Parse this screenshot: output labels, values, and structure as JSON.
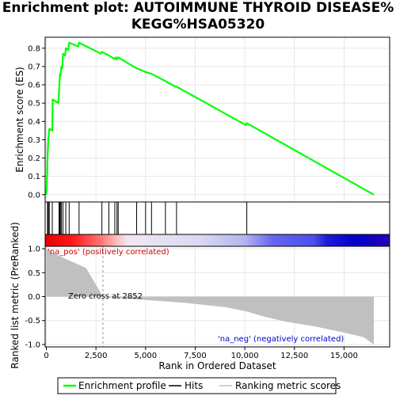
{
  "title_line1": "Enrichment plot: AUTOIMMUNE THYROID DISEASE%",
  "title_line2": "KEGG%HSA05320",
  "chart_data": {
    "type": "line",
    "title": "Enrichment plot: AUTOIMMUNE THYROID DISEASE% KEGG%HSA05320",
    "xlabel": "Rank in Ordered Dataset",
    "top_panel": {
      "ylabel": "Enrichment score (ES)",
      "ylim": [
        -0.04,
        0.86
      ],
      "yticks": [
        "0.0",
        "0.1",
        "0.2",
        "0.3",
        "0.4",
        "0.5",
        "0.6",
        "0.7",
        "0.8"
      ],
      "series": [
        {
          "name": "Enrichment profile",
          "color": "#00ff00",
          "x": [
            0,
            40,
            60,
            100,
            150,
            300,
            320,
            600,
            640,
            660,
            690,
            710,
            760,
            800,
            840,
            950,
            980,
            1100,
            1150,
            1600,
            1650,
            2750,
            2800,
            3150,
            3450,
            3500,
            3560,
            3620,
            4550,
            5000,
            5300,
            6000,
            6500,
            6560,
            10050,
            10100,
            16500
          ],
          "y": [
            0.0,
            0.1,
            0.2,
            0.3,
            0.36,
            0.35,
            0.52,
            0.5,
            0.56,
            0.6,
            0.66,
            0.65,
            0.7,
            0.69,
            0.77,
            0.76,
            0.8,
            0.79,
            0.83,
            0.81,
            0.83,
            0.77,
            0.78,
            0.76,
            0.74,
            0.75,
            0.74,
            0.75,
            0.69,
            0.67,
            0.66,
            0.62,
            0.59,
            0.59,
            0.38,
            0.39,
            0.0
          ]
        }
      ]
    },
    "hits": [
      60,
      100,
      150,
      300,
      640,
      660,
      690,
      710,
      760,
      840,
      980,
      1150,
      1650,
      2800,
      3150,
      3450,
      3560,
      3620,
      4550,
      5000,
      5300,
      6000,
      6560,
      10100
    ],
    "bottom_panel": {
      "ylabel": "Ranked list metric (PreRanked)",
      "ylim": [
        -1.05,
        1.05
      ],
      "yticks": [
        "1.0",
        "0.5",
        "0.0",
        "-0.5",
        "-1.0"
      ],
      "metric_x": [
        0,
        300,
        1000,
        2000,
        2852,
        3500,
        5000,
        7000,
        9000,
        10000,
        11000,
        12000,
        13500,
        15000,
        16000,
        16500
      ],
      "metric_y": [
        1.0,
        0.92,
        0.78,
        0.6,
        0.0,
        -0.03,
        -0.07,
        -0.13,
        -0.22,
        -0.3,
        -0.42,
        -0.52,
        -0.62,
        -0.75,
        -0.85,
        -1.0
      ]
    },
    "xlim": [
      0,
      16500
    ],
    "xticks": [
      "0",
      "2,500",
      "5,000",
      "7,500",
      "10,000",
      "12,500",
      "15,000"
    ],
    "annotations": {
      "pos_label": "'na_pos' (positively correlated)",
      "neg_label": "'na_neg' (negatively correlated)",
      "zero_cross": "Zero cross at 2852"
    },
    "legend": {
      "placement": "bottom",
      "items": [
        "Enrichment profile",
        "Hits",
        "Ranking metric scores"
      ]
    },
    "colors": {
      "profile": "#00ff00",
      "metric_fill": "#c0c0c0",
      "pos_text": "#cc0000",
      "neg_text": "#0000cc"
    }
  }
}
